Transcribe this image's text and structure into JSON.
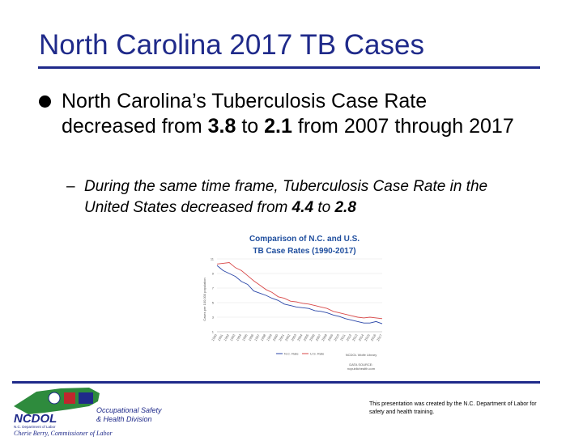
{
  "slide": {
    "title": "North Carolina 2017 TB Cases",
    "bullet_text_1": "North Carolina’s Tuberculosis Case Rate decreased from ",
    "bullet_val_1": "3.8",
    "bullet_text_2": " to ",
    "bullet_val_2": "2.1",
    "bullet_text_3": " from 2007 through 2017",
    "sub_text_1": "During the same time frame, Tuberculosis Case Rate in the United States decreased from ",
    "sub_val_1": "4.4",
    "sub_text_2": " to ",
    "sub_val_2": "2.8",
    "sub_dash": "–"
  },
  "chart_data": {
    "type": "line",
    "title_line1": "Comparison of N.C. and U.S.",
    "title_line2": "TB Case Rates (1990-2017)",
    "ylabel": "Cases per 100,000 population",
    "ylim": [
      1,
      11
    ],
    "yticks": [
      "1",
      "3",
      "5",
      "7",
      "9",
      "11"
    ],
    "categories": [
      "1990",
      "1991",
      "1992",
      "1993",
      "1994",
      "1995",
      "1996",
      "1997",
      "1998",
      "1999",
      "2000",
      "2001",
      "2002",
      "2003",
      "2004",
      "2005",
      "2006",
      "2007",
      "2008",
      "2009",
      "2010",
      "2011",
      "2012",
      "2013",
      "2014",
      "2015",
      "2016",
      "2017"
    ],
    "series": [
      {
        "name": "N.C. Rate",
        "color": "#2b47a8",
        "values": [
          10.1,
          9.4,
          9.0,
          8.6,
          7.9,
          7.5,
          6.6,
          6.3,
          6.0,
          5.6,
          5.3,
          4.8,
          4.6,
          4.4,
          4.3,
          4.2,
          3.9,
          3.8,
          3.6,
          3.3,
          3.1,
          2.8,
          2.6,
          2.4,
          2.2,
          2.2,
          2.4,
          2.1
        ]
      },
      {
        "name": "U.S. Rate",
        "color": "#d94a4a",
        "values": [
          10.3,
          10.4,
          10.5,
          9.8,
          9.4,
          8.7,
          8.0,
          7.4,
          6.8,
          6.4,
          5.8,
          5.6,
          5.2,
          5.1,
          4.9,
          4.8,
          4.6,
          4.4,
          4.2,
          3.8,
          3.6,
          3.4,
          3.2,
          3.0,
          2.9,
          3.0,
          2.9,
          2.8
        ]
      }
    ],
    "legend_placement": "bottom",
    "source_lines": [
      "NCDOL Wolfe Library",
      "DATA SOURCE:",
      "ncpublichealth.com"
    ]
  },
  "logo": {
    "brand": "NCDOL",
    "division_line1": "Occupational Safety",
    "division_line2": "& Health Division",
    "dept": "N.C. Department of Labor",
    "commissioner": "Cherie Berry, Commissioner of Labor",
    "color_primary": "#1f2a8a",
    "color_green": "#2e8b3d",
    "color_red": "#c1272d"
  },
  "footer": {
    "note": "This presentation was created by the N.C. Department of Labor for safety and health training."
  }
}
